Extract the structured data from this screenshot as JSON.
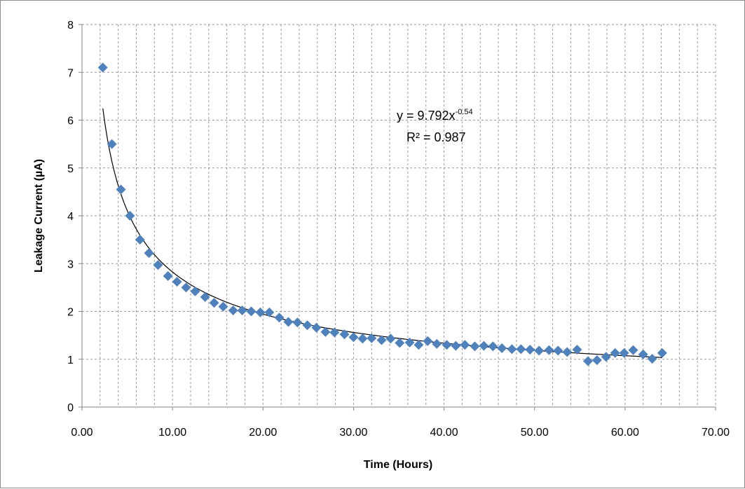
{
  "chart_data": {
    "type": "scatter",
    "xlabel": "Time (Hours)",
    "ylabel": "Leakage Current (µA)",
    "xlim": [
      0,
      70
    ],
    "ylim": [
      0,
      8
    ],
    "x_ticks": [
      "0.00",
      "10.00",
      "20.00",
      "30.00",
      "40.00",
      "50.00",
      "60.00",
      "70.00"
    ],
    "y_ticks": [
      "0",
      "1",
      "2",
      "3",
      "4",
      "5",
      "6",
      "7",
      "8"
    ],
    "grid": "dashed, both axes",
    "legend": "none",
    "marker_color": "#4f81bd",
    "trendline_color": "#000000",
    "series": [
      {
        "points": [
          [
            2.3,
            7.1
          ],
          [
            3.3,
            5.5
          ],
          [
            4.3,
            4.55
          ],
          [
            5.3,
            4.0
          ],
          [
            6.4,
            3.5
          ],
          [
            7.4,
            3.22
          ],
          [
            8.4,
            2.97
          ],
          [
            9.5,
            2.74
          ],
          [
            10.5,
            2.62
          ],
          [
            11.5,
            2.5
          ],
          [
            12.5,
            2.42
          ],
          [
            13.6,
            2.3
          ],
          [
            14.6,
            2.18
          ],
          [
            15.6,
            2.1
          ],
          [
            16.7,
            2.02
          ],
          [
            17.7,
            2.02
          ],
          [
            18.7,
            2.0
          ],
          [
            19.7,
            1.98
          ],
          [
            20.7,
            1.98
          ],
          [
            21.8,
            1.87
          ],
          [
            22.8,
            1.78
          ],
          [
            23.8,
            1.77
          ],
          [
            24.9,
            1.71
          ],
          [
            25.9,
            1.66
          ],
          [
            26.9,
            1.57
          ],
          [
            27.9,
            1.56
          ],
          [
            29.0,
            1.52
          ],
          [
            30.0,
            1.46
          ],
          [
            31.0,
            1.43
          ],
          [
            32.0,
            1.44
          ],
          [
            33.1,
            1.4
          ],
          [
            34.1,
            1.43
          ],
          [
            35.1,
            1.34
          ],
          [
            36.2,
            1.35
          ],
          [
            37.2,
            1.3
          ],
          [
            38.2,
            1.38
          ],
          [
            39.2,
            1.32
          ],
          [
            40.3,
            1.3
          ],
          [
            41.3,
            1.28
          ],
          [
            42.3,
            1.3
          ],
          [
            43.4,
            1.27
          ],
          [
            44.4,
            1.28
          ],
          [
            45.4,
            1.27
          ],
          [
            46.4,
            1.23
          ],
          [
            47.5,
            1.21
          ],
          [
            48.5,
            1.21
          ],
          [
            49.5,
            1.2
          ],
          [
            50.5,
            1.18
          ],
          [
            51.6,
            1.19
          ],
          [
            52.6,
            1.18
          ],
          [
            53.6,
            1.15
          ],
          [
            54.7,
            1.2
          ],
          [
            55.9,
            0.96
          ],
          [
            56.9,
            0.98
          ],
          [
            57.9,
            1.05
          ],
          [
            58.9,
            1.13
          ],
          [
            59.9,
            1.13
          ],
          [
            60.9,
            1.19
          ],
          [
            62.0,
            1.1
          ],
          [
            63.0,
            1.01
          ],
          [
            64.1,
            1.13
          ]
        ]
      }
    ],
    "trendline": {
      "type": "power",
      "coefficient": 9.792,
      "exponent": -0.54,
      "x_range": [
        2.3,
        64.1
      ],
      "equation_base": "y = 9.792x",
      "equation_exponent": "-0.54",
      "r_squared_label": "R² = 0.987"
    }
  }
}
